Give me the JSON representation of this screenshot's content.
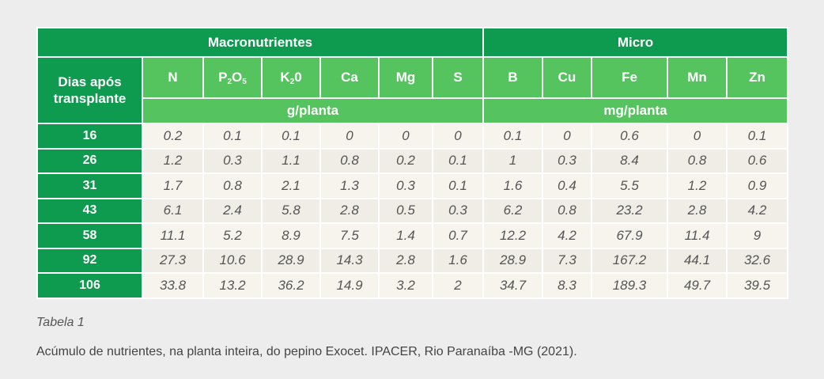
{
  "table": {
    "group_macro": "Macronutrientes",
    "group_micro": "Micro",
    "row_header": "Dias após transplante",
    "unit_macro": "g/planta",
    "unit_micro": "mg/planta",
    "col_N": "N",
    "col_P_main": "P",
    "col_P_sub1": "2",
    "col_P_mid": "O",
    "col_P_sub2": "5",
    "col_K_main": "K",
    "col_K_sub": "2",
    "col_K_end": "0",
    "col_Ca": "Ca",
    "col_Mg": "Mg",
    "col_S": "S",
    "col_B": "B",
    "col_Cu": "Cu",
    "col_Fe": "Fe",
    "col_Mn": "Mn",
    "col_Zn": "Zn",
    "rows": [
      {
        "day": "16",
        "v": [
          "0.2",
          "0.1",
          "0.1",
          "0",
          "0",
          "0",
          "0.1",
          "0",
          "0.6",
          "0",
          "0.1"
        ]
      },
      {
        "day": "26",
        "v": [
          "1.2",
          "0.3",
          "1.1",
          "0.8",
          "0.2",
          "0.1",
          "1",
          "0.3",
          "8.4",
          "0.8",
          "0.6"
        ]
      },
      {
        "day": "31",
        "v": [
          "1.7",
          "0.8",
          "2.1",
          "1.3",
          "0.3",
          "0.1",
          "1.6",
          "0.4",
          "5.5",
          "1.2",
          "0.9"
        ]
      },
      {
        "day": "43",
        "v": [
          "6.1",
          "2.4",
          "5.8",
          "2.8",
          "0.5",
          "0.3",
          "6.2",
          "0.8",
          "23.2",
          "2.8",
          "4.2"
        ]
      },
      {
        "day": "58",
        "v": [
          "11.1",
          "5.2",
          "8.9",
          "7.5",
          "1.4",
          "0.7",
          "12.2",
          "4.2",
          "67.9",
          "11.4",
          "9"
        ]
      },
      {
        "day": "92",
        "v": [
          "27.3",
          "10.6",
          "28.9",
          "14.3",
          "2.8",
          "1.6",
          "28.9",
          "7.3",
          "167.2",
          "44.1",
          "32.6"
        ]
      },
      {
        "day": "106",
        "v": [
          "33.8",
          "13.2",
          "36.2",
          "14.9",
          "3.2",
          "2",
          "34.7",
          "8.3",
          "189.3",
          "49.7",
          "39.5"
        ]
      }
    ]
  },
  "caption": {
    "title": "Tabela 1",
    "text": "Acúmulo de nutrientes, na planta inteira, do pepino Exocet. IPACER, Rio Paranaíba -MG (2021)."
  }
}
